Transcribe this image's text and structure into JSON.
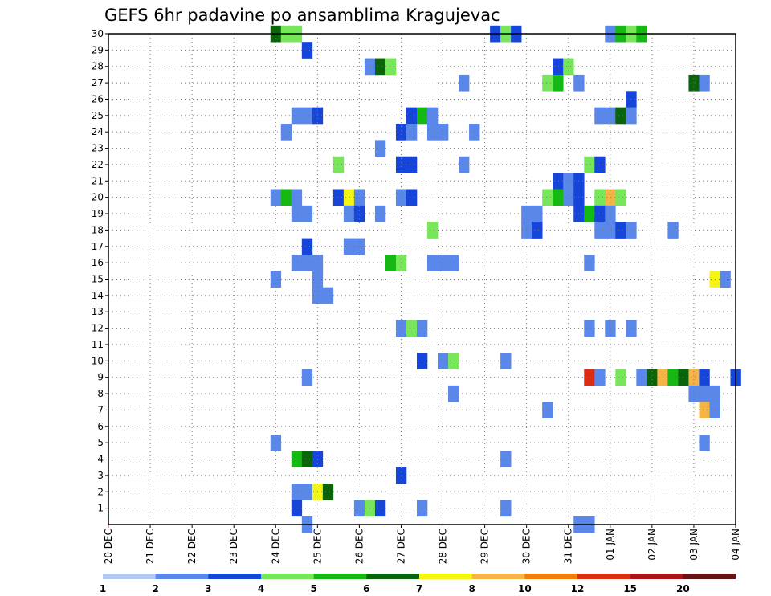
{
  "chart_data": {
    "type": "heatmap",
    "title": "GEFS 6hr padavine po ansamblima Kragujevac",
    "xlabel": "",
    "ylabel": "",
    "x_start": "20 DEC",
    "steps_per_day": 4,
    "x_range": [
      0,
      60
    ],
    "y_range": [
      0,
      30
    ],
    "grid": true,
    "x_ticks": [
      "20 DEC",
      "21 DEC",
      "22 DEC",
      "23 DEC",
      "24 DEC",
      "25 DEC",
      "26 DEC",
      "27 DEC",
      "28 DEC",
      "29 DEC",
      "30 DEC",
      "31 DEC",
      "01 JAN",
      "02 JAN",
      "03 JAN",
      "04 JAN"
    ],
    "y_ticks": [
      "1",
      "2",
      "3",
      "4",
      "5",
      "6",
      "7",
      "8",
      "9",
      "10",
      "11",
      "12",
      "13",
      "14",
      "15",
      "16",
      "17",
      "18",
      "19",
      "20",
      "21",
      "22",
      "23",
      "24",
      "25",
      "26",
      "27",
      "28",
      "29",
      "30"
    ],
    "colorbar": {
      "levels": [
        "1",
        "2",
        "3",
        "4",
        "5",
        "6",
        "7",
        "8",
        "10",
        "12",
        "15",
        "20"
      ],
      "colors": [
        "#b4c8f5",
        "#5a87ea",
        "#1546d9",
        "#78e65a",
        "#14b914",
        "#0a640a",
        "#f5f514",
        "#f5b446",
        "#f57d0a",
        "#dc2d14",
        "#aa1414",
        "#641414"
      ]
    },
    "cells": [
      [
        16,
        30,
        5
      ],
      [
        17,
        30,
        3
      ],
      [
        18,
        30,
        3
      ],
      [
        37,
        30,
        2
      ],
      [
        38,
        30,
        3
      ],
      [
        39,
        30,
        2
      ],
      [
        48,
        30,
        1
      ],
      [
        49,
        30,
        4
      ],
      [
        50,
        30,
        3
      ],
      [
        51,
        30,
        4
      ],
      [
        19,
        29,
        2
      ],
      [
        25,
        28,
        1
      ],
      [
        26,
        28,
        5
      ],
      [
        27,
        28,
        3
      ],
      [
        43,
        28,
        2
      ],
      [
        44,
        28,
        3
      ],
      [
        34,
        27,
        1
      ],
      [
        42,
        27,
        3
      ],
      [
        43,
        27,
        4
      ],
      [
        45,
        27,
        1
      ],
      [
        56,
        27,
        5
      ],
      [
        57,
        27,
        1
      ],
      [
        50,
        26,
        2
      ],
      [
        18,
        25,
        1
      ],
      [
        19,
        25,
        1
      ],
      [
        20,
        25,
        2
      ],
      [
        29,
        25,
        2
      ],
      [
        30,
        25,
        4
      ],
      [
        31,
        25,
        1
      ],
      [
        47,
        25,
        1
      ],
      [
        48,
        25,
        1
      ],
      [
        49,
        25,
        5
      ],
      [
        50,
        25,
        1
      ],
      [
        17,
        24,
        1
      ],
      [
        28,
        24,
        2
      ],
      [
        29,
        24,
        1
      ],
      [
        31,
        24,
        1
      ],
      [
        32,
        24,
        1
      ],
      [
        35,
        24,
        1
      ],
      [
        26,
        23,
        1
      ],
      [
        22,
        22,
        3
      ],
      [
        28,
        22,
        2
      ],
      [
        29,
        22,
        2
      ],
      [
        34,
        22,
        1
      ],
      [
        46,
        22,
        3
      ],
      [
        47,
        22,
        2
      ],
      [
        43,
        21,
        2
      ],
      [
        44,
        21,
        1
      ],
      [
        45,
        21,
        2
      ],
      [
        16,
        20,
        1
      ],
      [
        17,
        20,
        4
      ],
      [
        18,
        20,
        1
      ],
      [
        22,
        20,
        2
      ],
      [
        23,
        20,
        6
      ],
      [
        24,
        20,
        1
      ],
      [
        28,
        20,
        1
      ],
      [
        29,
        20,
        2
      ],
      [
        42,
        20,
        3
      ],
      [
        43,
        20,
        4
      ],
      [
        44,
        20,
        1
      ],
      [
        45,
        20,
        2
      ],
      [
        47,
        20,
        3
      ],
      [
        48,
        20,
        7
      ],
      [
        49,
        20,
        3
      ],
      [
        18,
        19,
        1
      ],
      [
        19,
        19,
        1
      ],
      [
        23,
        19,
        1
      ],
      [
        24,
        19,
        2
      ],
      [
        26,
        19,
        1
      ],
      [
        40,
        19,
        1
      ],
      [
        41,
        19,
        1
      ],
      [
        45,
        19,
        2
      ],
      [
        46,
        19,
        4
      ],
      [
        47,
        19,
        2
      ],
      [
        48,
        19,
        1
      ],
      [
        40,
        18,
        1
      ],
      [
        41,
        18,
        2
      ],
      [
        31,
        18,
        3
      ],
      [
        47,
        18,
        1
      ],
      [
        48,
        18,
        1
      ],
      [
        49,
        18,
        2
      ],
      [
        50,
        18,
        1
      ],
      [
        54,
        18,
        1
      ],
      [
        19,
        17,
        2
      ],
      [
        23,
        17,
        1
      ],
      [
        24,
        17,
        1
      ],
      [
        18,
        16,
        1
      ],
      [
        19,
        16,
        1
      ],
      [
        20,
        16,
        1
      ],
      [
        27,
        16,
        4
      ],
      [
        28,
        16,
        3
      ],
      [
        31,
        16,
        1
      ],
      [
        32,
        16,
        1
      ],
      [
        33,
        16,
        1
      ],
      [
        46,
        16,
        1
      ],
      [
        16,
        15,
        1
      ],
      [
        20,
        15,
        1
      ],
      [
        58,
        15,
        6
      ],
      [
        59,
        15,
        1
      ],
      [
        20,
        14,
        1
      ],
      [
        21,
        14,
        1
      ],
      [
        28,
        12,
        1
      ],
      [
        29,
        12,
        3
      ],
      [
        30,
        12,
        1
      ],
      [
        46,
        12,
        1
      ],
      [
        48,
        12,
        1
      ],
      [
        50,
        12,
        1
      ],
      [
        30,
        10,
        2
      ],
      [
        32,
        10,
        1
      ],
      [
        33,
        10,
        3
      ],
      [
        38,
        10,
        1
      ],
      [
        19,
        9,
        1
      ],
      [
        46,
        9,
        9
      ],
      [
        47,
        9,
        1
      ],
      [
        49,
        9,
        3
      ],
      [
        51,
        9,
        1
      ],
      [
        52,
        9,
        5
      ],
      [
        53,
        9,
        7
      ],
      [
        54,
        9,
        4
      ],
      [
        55,
        9,
        5
      ],
      [
        56,
        9,
        7
      ],
      [
        57,
        9,
        2
      ],
      [
        60,
        9,
        2
      ],
      [
        33,
        8,
        1
      ],
      [
        56,
        8,
        1
      ],
      [
        57,
        8,
        1
      ],
      [
        58,
        8,
        1
      ],
      [
        42,
        7,
        1
      ],
      [
        57,
        7,
        7
      ],
      [
        58,
        7,
        1
      ],
      [
        16,
        5,
        1
      ],
      [
        57,
        5,
        1
      ],
      [
        18,
        4,
        4
      ],
      [
        19,
        4,
        5
      ],
      [
        20,
        4,
        2
      ],
      [
        38,
        4,
        1
      ],
      [
        28,
        3,
        2
      ],
      [
        18,
        2,
        1
      ],
      [
        19,
        2,
        1
      ],
      [
        20,
        2,
        6
      ],
      [
        21,
        2,
        5
      ],
      [
        18,
        1,
        2
      ],
      [
        24,
        1,
        1
      ],
      [
        25,
        1,
        3
      ],
      [
        26,
        1,
        2
      ],
      [
        30,
        1,
        1
      ],
      [
        38,
        1,
        1
      ],
      [
        19,
        0,
        1
      ],
      [
        45,
        0,
        1
      ],
      [
        46,
        0,
        1
      ]
    ]
  }
}
